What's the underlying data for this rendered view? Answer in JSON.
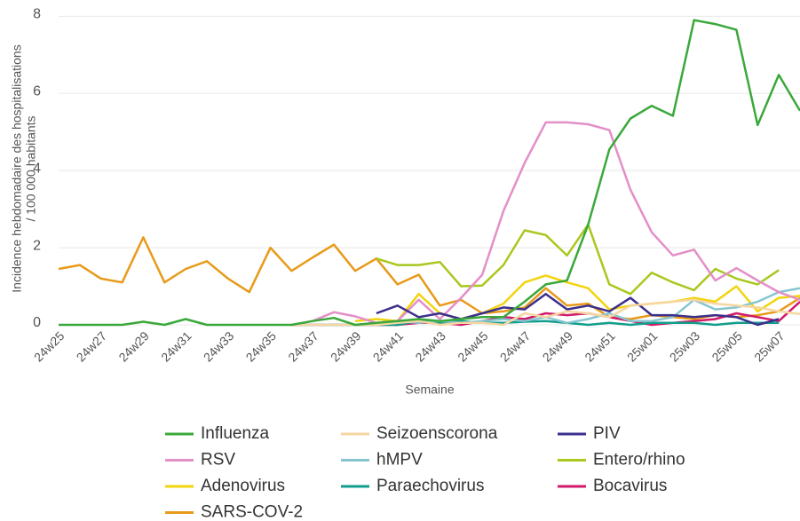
{
  "chart_data": {
    "type": "line",
    "ylabel": [
      "Incidence hebdomadaire des hospitalisations",
      "/ 100 000 habitants"
    ],
    "xlabel": "Semaine",
    "categories": [
      "24w25",
      null,
      "24w27",
      null,
      "24w29",
      null,
      "24w31",
      null,
      "24w33",
      null,
      "24w35",
      null,
      "24w37",
      null,
      "24w39",
      null,
      "24w41",
      null,
      "24w43",
      null,
      "24w45",
      null,
      "24w47",
      null,
      "24w49",
      null,
      "24w51",
      null,
      "25w01",
      null,
      "25w03",
      null,
      "25w05",
      null,
      "25w07",
      null
    ],
    "ylim": [
      0,
      8.4
    ],
    "yticks": [
      0,
      2,
      4,
      6,
      8
    ],
    "grid": true,
    "series": [
      {
        "name": "Influenza",
        "color": "#3aa83a",
        "values": [
          0,
          0,
          0,
          0,
          0.08,
          0,
          0.15,
          0,
          0,
          0,
          0,
          0,
          0.1,
          0.18,
          0,
          0.05,
          0.1,
          0.15,
          0.1,
          0.15,
          0.2,
          0.2,
          0.6,
          1.05,
          1.15,
          2.6,
          4.55,
          5.35,
          5.68,
          5.42,
          7.9,
          7.8,
          7.65,
          5.18,
          6.48,
          5.55
        ]
      },
      {
        "name": "Seizoenscorona",
        "color": "#f5d6a0",
        "values": [
          null,
          null,
          null,
          null,
          null,
          null,
          null,
          null,
          null,
          null,
          null,
          0,
          0,
          0,
          0,
          0,
          0.05,
          0.1,
          0,
          0.05,
          0.05,
          0,
          0.3,
          0.2,
          0.35,
          0.3,
          0.2,
          0.5,
          0.55,
          0.6,
          0.65,
          0.55,
          0.5,
          0.45,
          0.35,
          0.28
        ]
      },
      {
        "name": "PIV",
        "color": "#3b2f8c",
        "values": [
          null,
          null,
          null,
          null,
          null,
          null,
          null,
          null,
          null,
          null,
          null,
          null,
          null,
          null,
          null,
          0.3,
          0.5,
          0.2,
          0.3,
          0.15,
          0.3,
          0.45,
          0.4,
          0.8,
          0.4,
          0.5,
          0.35,
          0.7,
          0.25,
          0.25,
          0.2,
          0.25,
          0.2,
          0,
          0.15,
          null
        ]
      },
      {
        "name": "RSV",
        "color": "#e38fc8",
        "values": [
          null,
          null,
          null,
          null,
          null,
          null,
          null,
          null,
          null,
          null,
          null,
          0,
          0.1,
          0.33,
          0.22,
          0.05,
          0.1,
          0.65,
          0.15,
          0.7,
          1.3,
          2.95,
          4.2,
          5.25,
          5.25,
          5.2,
          5.05,
          3.5,
          2.4,
          1.8,
          1.95,
          1.15,
          1.47,
          1.15,
          0.85,
          0.65
        ]
      },
      {
        "name": "hMPV",
        "color": "#86c5d0",
        "values": [
          null,
          null,
          null,
          null,
          null,
          null,
          null,
          null,
          null,
          null,
          null,
          0,
          0,
          0,
          0,
          0.05,
          0.1,
          0.05,
          0.1,
          0.05,
          0.1,
          0.15,
          0.1,
          0.2,
          0.05,
          0.15,
          0.3,
          0.1,
          0.1,
          0.2,
          0.65,
          0.4,
          0.45,
          0.6,
          0.85,
          0.95
        ]
      },
      {
        "name": "Entero/rhino",
        "color": "#a8c81e",
        "values": [
          null,
          null,
          null,
          null,
          null,
          null,
          null,
          null,
          null,
          null,
          null,
          null,
          null,
          null,
          null,
          1.72,
          1.55,
          1.55,
          1.63,
          1.0,
          1.02,
          1.55,
          2.45,
          2.33,
          1.8,
          2.6,
          1.05,
          0.8,
          1.35,
          1.1,
          0.9,
          1.45,
          1.2,
          1.05,
          1.42,
          null
        ]
      },
      {
        "name": "Adenovirus",
        "color": "#f2d40c",
        "values": [
          null,
          null,
          null,
          null,
          null,
          null,
          null,
          null,
          null,
          null,
          null,
          null,
          null,
          null,
          0.1,
          0.15,
          0.1,
          0.8,
          0.3,
          0.15,
          0.3,
          0.55,
          1.1,
          1.28,
          1.1,
          0.95,
          0.4,
          0.5,
          0.55,
          0.6,
          0.7,
          0.6,
          1.0,
          0.35,
          0.7,
          0.75
        ]
      },
      {
        "name": "Paraechovirus",
        "color": "#129e8c",
        "values": [
          null,
          null,
          null,
          null,
          null,
          null,
          null,
          null,
          null,
          null,
          null,
          0,
          0,
          0,
          0,
          0,
          0,
          0.1,
          0.05,
          0.1,
          0.05,
          0.05,
          0.08,
          0.1,
          0.05,
          0,
          0.05,
          0,
          0.05,
          0.05,
          0.05,
          0,
          0.05,
          0.05,
          0.05,
          null
        ]
      },
      {
        "name": "Bocavirus",
        "color": "#d11a6b",
        "values": [
          null,
          null,
          null,
          null,
          null,
          null,
          null,
          null,
          null,
          null,
          null,
          0,
          0,
          0,
          0,
          0,
          0,
          0.05,
          0.05,
          0,
          0.1,
          0.2,
          0.15,
          0.3,
          0.25,
          0.3,
          0.2,
          0.1,
          0,
          0.05,
          0.1,
          0.15,
          0.3,
          0.2,
          0.1,
          0.6
        ]
      },
      {
        "name": "SARS-COV-2",
        "color": "#e89a1a",
        "values": [
          1.45,
          1.55,
          1.2,
          1.1,
          2.27,
          1.1,
          1.45,
          1.65,
          1.2,
          0.85,
          2.0,
          1.4,
          1.75,
          2.08,
          1.4,
          1.72,
          1.05,
          1.3,
          0.5,
          0.65,
          0.3,
          0.35,
          0.45,
          0.95,
          0.5,
          0.55,
          0.2,
          0.15,
          0.25,
          0.2,
          0.15,
          0.25,
          0.2,
          0.25,
          0.35,
          0.7
        ]
      }
    ]
  }
}
